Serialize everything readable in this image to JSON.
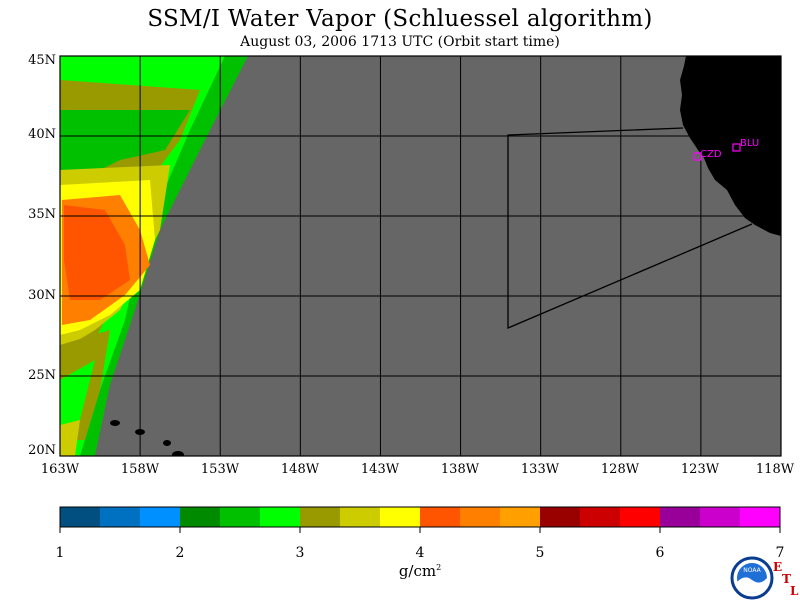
{
  "title": "SSM/I Water Vapor (Schluessel algorithm)",
  "subtitle": "August 03, 2006  1713 UTC  (Orbit start time)",
  "map": {
    "lat_range": [
      20,
      45
    ],
    "lon_range": [
      -163,
      -118
    ],
    "lat_labels": [
      "45N",
      "40N",
      "35N",
      "30N",
      "25N",
      "20N"
    ],
    "lon_labels": [
      "163W",
      "158W",
      "153W",
      "148W",
      "143W",
      "138W",
      "133W",
      "128W",
      "123W",
      "118W"
    ],
    "no_data_color": "#666666",
    "land_color": "#000000",
    "stations": [
      {
        "label": "CZD"
      },
      {
        "label": "BLU"
      }
    ]
  },
  "chart_data": {
    "type": "heatmap",
    "variable": "Integrated water vapor",
    "units": "g/cm²",
    "colorbar": {
      "min": 1,
      "max": 7,
      "tick_labels": [
        "1",
        "2",
        "3",
        "4",
        "5",
        "6",
        "7"
      ],
      "colors": [
        "#004f80",
        "#0070c0",
        "#0090ff",
        "#008a00",
        "#00c000",
        "#00ff00",
        "#999900",
        "#cccc00",
        "#ffff00",
        "#ff5500",
        "#ff7f00",
        "#ffa000",
        "#990000",
        "#cc0000",
        "#ff0000",
        "#990099",
        "#cc00cc",
        "#ff00ff"
      ]
    }
  },
  "logo": {
    "etl_letters": [
      "E",
      "T",
      "L"
    ],
    "noaa_text": "NOAA"
  }
}
